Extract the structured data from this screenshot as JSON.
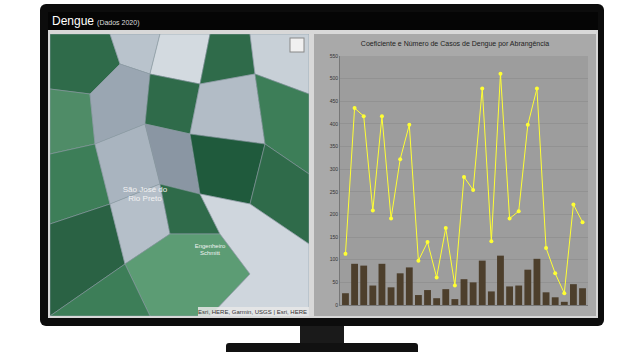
{
  "header": {
    "title": "Dengue",
    "subtitle": "(Dados 2020)"
  },
  "map": {
    "labels": [
      {
        "lines": [
          "São José do",
          "Rio Preto"
        ]
      },
      {
        "lines": [
          "Engenheiro",
          "Schmitt"
        ]
      }
    ],
    "attribution": "Esri, HERE, Garmin, USGS | Esri, HERE"
  },
  "chart_data": {
    "type": "bar",
    "title": "Coeficiente e Número de Casos de Dengue por Abrangência",
    "categories": [
      null,
      null,
      null,
      null,
      null,
      null,
      null,
      null,
      null,
      null,
      null,
      null,
      null,
      null,
      null,
      null,
      null,
      null,
      null,
      null,
      null,
      null,
      null,
      null,
      null,
      null,
      null
    ],
    "series": [
      {
        "type": "bar",
        "color": "#4d3f2c",
        "values": [
          26,
          91,
          87,
          43,
          91,
          39,
          70,
          83,
          22,
          33,
          15,
          35,
          13,
          57,
          50,
          98,
          30,
          109,
          41,
          43,
          78,
          102,
          28,
          17,
          7,
          46,
          37
        ]
      },
      {
        "type": "line",
        "color": "#ffff33",
        "marker": "circle",
        "values": [
          113,
          435,
          417,
          209,
          417,
          191,
          322,
          398,
          98,
          139,
          61,
          170,
          43,
          283,
          254,
          478,
          141,
          511,
          191,
          207,
          398,
          478,
          126,
          70,
          26,
          222,
          183
        ]
      }
    ],
    "ylim": [
      0,
      550
    ],
    "yticks": [
      0,
      50,
      100,
      150,
      200,
      250,
      300,
      350,
      400,
      450,
      500,
      550
    ],
    "grid": true,
    "tick_labels": "y"
  }
}
